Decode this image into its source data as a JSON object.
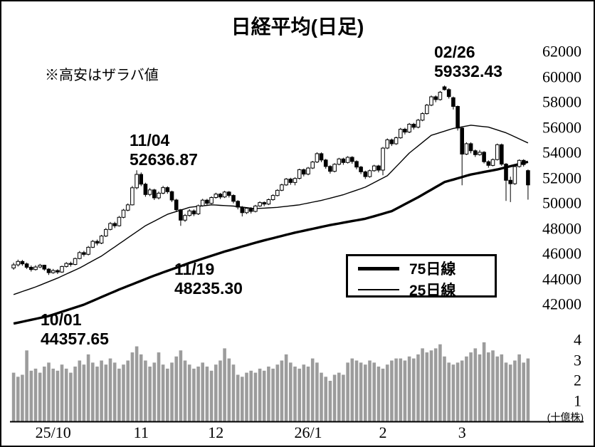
{
  "colors": {
    "background": "#ffffff",
    "border": "#000000",
    "candle_up": "#ffffff",
    "candle_down": "#000000",
    "outline": "#000000",
    "volume_bar": "#9c9c9c",
    "ma75": "#000000",
    "ma25": "#000000"
  },
  "chart_data": {
    "type": "candlestick",
    "title": "日経平均(日足)",
    "note": "※高安はザラバ値",
    "y_ticks": [
      62000,
      60000,
      58000,
      56000,
      54000,
      52000,
      50000,
      48000,
      46000,
      44000,
      42000
    ],
    "y_range": [
      40100,
      63000
    ],
    "volume_ticks": [
      4,
      3,
      2,
      1
    ],
    "volume_unit": "(十億株)",
    "volume_range": [
      0,
      4.3
    ],
    "grid": false,
    "legend": [
      {
        "label": "75日線",
        "style": "thick"
      },
      {
        "label": "25日線",
        "style": "thin"
      }
    ],
    "x_labels": [
      {
        "text": "25/10",
        "day_index": 9
      },
      {
        "text": "11",
        "day_index": 29
      },
      {
        "text": "12",
        "day_index": 46
      },
      {
        "text": "26/1",
        "day_index": 67
      },
      {
        "text": "2",
        "day_index": 84
      },
      {
        "text": "3",
        "day_index": 102
      }
    ],
    "annotations": [
      {
        "date": "02/26",
        "value": "59332.43",
        "day_index": 98,
        "kind": "high"
      },
      {
        "date": "11/04",
        "value": "52636.87",
        "day_index": 28,
        "kind": "high"
      },
      {
        "date": "11/19",
        "value": "48235.30",
        "day_index": 38,
        "kind": "low"
      },
      {
        "date": "10/01",
        "value": "44357.65",
        "day_index": 8,
        "kind": "low"
      }
    ],
    "candles": [
      [
        44900,
        45320,
        44760,
        45150
      ],
      [
        45150,
        45560,
        45020,
        45420
      ],
      [
        45420,
        45540,
        45080,
        45230
      ],
      [
        45230,
        45330,
        44820,
        44960
      ],
      [
        44960,
        45100,
        44620,
        44780
      ],
      [
        44780,
        45120,
        44700,
        44980
      ],
      [
        44980,
        45230,
        44890,
        45120
      ],
      [
        45120,
        45160,
        44680,
        44810
      ],
      [
        44810,
        44890,
        44357.65,
        44530
      ],
      [
        44530,
        44830,
        44440,
        44700
      ],
      [
        44700,
        44800,
        44420,
        44580
      ],
      [
        44580,
        45090,
        44510,
        45020
      ],
      [
        45020,
        45370,
        44940,
        45260
      ],
      [
        45260,
        45400,
        45010,
        45180
      ],
      [
        45180,
        45720,
        45120,
        45650
      ],
      [
        45650,
        46240,
        45590,
        46120
      ],
      [
        46120,
        46260,
        45810,
        45980
      ],
      [
        45980,
        46640,
        45900,
        46540
      ],
      [
        46540,
        47120,
        46480,
        47010
      ],
      [
        47010,
        47150,
        46690,
        46870
      ],
      [
        46870,
        47520,
        46790,
        47430
      ],
      [
        47430,
        48060,
        47350,
        47950
      ],
      [
        47950,
        48540,
        47880,
        48420
      ],
      [
        48420,
        48560,
        48060,
        48240
      ],
      [
        48240,
        49020,
        48180,
        48910
      ],
      [
        48910,
        49580,
        48840,
        49480
      ],
      [
        49480,
        50010,
        49390,
        49900
      ],
      [
        49900,
        51390,
        49850,
        51250
      ],
      [
        51250,
        52636.87,
        51130,
        52310
      ],
      [
        52310,
        52460,
        51380,
        51540
      ],
      [
        51540,
        51650,
        50540,
        50720
      ],
      [
        50720,
        51230,
        50590,
        51080
      ],
      [
        51080,
        51170,
        50280,
        50450
      ],
      [
        50450,
        50950,
        50330,
        50820
      ],
      [
        50820,
        51400,
        50740,
        51260
      ],
      [
        51260,
        51370,
        50780,
        50940
      ],
      [
        50940,
        51020,
        50130,
        50280
      ],
      [
        50280,
        50380,
        49330,
        49510
      ],
      [
        49510,
        49570,
        48235.3,
        48690
      ],
      [
        48690,
        49180,
        48550,
        49060
      ],
      [
        49060,
        49560,
        48970,
        49420
      ],
      [
        49420,
        49540,
        49010,
        49180
      ],
      [
        49180,
        49920,
        49100,
        49830
      ],
      [
        49830,
        50380,
        49760,
        50270
      ],
      [
        50270,
        50370,
        49860,
        50020
      ],
      [
        50020,
        50570,
        49950,
        50480
      ],
      [
        50480,
        50860,
        50390,
        50750
      ],
      [
        50750,
        50840,
        50360,
        50520
      ],
      [
        50520,
        51010,
        50440,
        50910
      ],
      [
        50910,
        50990,
        50480,
        50640
      ],
      [
        50640,
        50730,
        50010,
        50180
      ],
      [
        50180,
        50270,
        49540,
        49720
      ],
      [
        49720,
        49800,
        48980,
        49280
      ],
      [
        49280,
        49720,
        49180,
        49630
      ],
      [
        49630,
        49710,
        49210,
        49380
      ],
      [
        49380,
        49900,
        49300,
        49810
      ],
      [
        49810,
        50180,
        49740,
        50080
      ],
      [
        50080,
        50170,
        49790,
        49960
      ],
      [
        49960,
        50400,
        49880,
        50310
      ],
      [
        50310,
        50730,
        50230,
        50640
      ],
      [
        50640,
        51140,
        50570,
        51050
      ],
      [
        51050,
        51570,
        50980,
        51480
      ],
      [
        51480,
        52030,
        51410,
        51940
      ],
      [
        51940,
        52040,
        51490,
        51670
      ],
      [
        51670,
        52080,
        51440,
        51990
      ],
      [
        51990,
        52760,
        51910,
        52680
      ],
      [
        52680,
        52770,
        52150,
        52330
      ],
      [
        52330,
        52900,
        52240,
        52810
      ],
      [
        52810,
        53380,
        52730,
        53290
      ],
      [
        53290,
        54060,
        53210,
        53950
      ],
      [
        53950,
        54050,
        53280,
        53450
      ],
      [
        53450,
        53540,
        52760,
        52940
      ],
      [
        52940,
        53030,
        52370,
        52550
      ],
      [
        52550,
        53200,
        52470,
        53110
      ],
      [
        53110,
        53620,
        53030,
        53530
      ],
      [
        53530,
        53630,
        53070,
        53250
      ],
      [
        53250,
        53750,
        53170,
        53660
      ],
      [
        53660,
        53750,
        53150,
        53330
      ],
      [
        53330,
        53420,
        52710,
        52890
      ],
      [
        52890,
        52980,
        52330,
        52510
      ],
      [
        52510,
        52600,
        51950,
        52130
      ],
      [
        52130,
        52690,
        52050,
        52600
      ],
      [
        52600,
        53070,
        52520,
        52980
      ],
      [
        52980,
        53070,
        52470,
        52650
      ],
      [
        52650,
        54480,
        52240,
        54390
      ],
      [
        54390,
        55160,
        54310,
        55040
      ],
      [
        55040,
        55150,
        54560,
        54730
      ],
      [
        54730,
        55300,
        54650,
        55210
      ],
      [
        55210,
        55990,
        55130,
        55890
      ],
      [
        55890,
        56000,
        55470,
        55660
      ],
      [
        55660,
        56380,
        55580,
        56280
      ],
      [
        56280,
        56390,
        55860,
        56040
      ],
      [
        56040,
        56700,
        55960,
        56600
      ],
      [
        56600,
        57220,
        56520,
        57120
      ],
      [
        57120,
        57890,
        57050,
        57790
      ],
      [
        57790,
        58550,
        57710,
        58450
      ],
      [
        58450,
        58560,
        58020,
        58230
      ],
      [
        58230,
        58910,
        58150,
        58810
      ],
      [
        59240,
        59332.43,
        58950,
        59020
      ],
      [
        59020,
        59130,
        58310,
        58470
      ],
      [
        58380,
        58470,
        57450,
        57690
      ],
      [
        57690,
        57760,
        55780,
        55980
      ],
      [
        55980,
        56060,
        51450,
        53920
      ],
      [
        53920,
        54850,
        53840,
        54740
      ],
      [
        54740,
        54850,
        53980,
        54180
      ],
      [
        54180,
        54280,
        53690,
        53870
      ],
      [
        53870,
        54240,
        53790,
        54060
      ],
      [
        54060,
        54150,
        53180,
        53310
      ],
      [
        53310,
        53420,
        52840,
        53020
      ],
      [
        53020,
        53560,
        52950,
        53480
      ],
      [
        53480,
        54750,
        53410,
        54660
      ],
      [
        54660,
        54750,
        52980,
        53120
      ],
      [
        53120,
        53210,
        50210,
        51840
      ],
      [
        51840,
        52130,
        50120,
        51570
      ],
      [
        51570,
        53010,
        51480,
        52930
      ],
      [
        52930,
        53500,
        52850,
        53420
      ],
      [
        53420,
        53510,
        52930,
        53090
      ],
      [
        52610,
        52700,
        50310,
        51480
      ]
    ],
    "volume": [
      2.4,
      2.2,
      2.3,
      3.5,
      2.5,
      2.6,
      2.4,
      2.7,
      2.9,
      2.6,
      2.5,
      2.8,
      2.6,
      2.4,
      2.7,
      3.0,
      2.8,
      3.3,
      2.9,
      2.7,
      3.0,
      2.8,
      3.1,
      2.9,
      2.6,
      2.8,
      3.0,
      3.4,
      3.7,
      3.3,
      3.0,
      2.7,
      2.9,
      3.4,
      2.8,
      2.6,
      2.9,
      3.2,
      3.5,
      3.0,
      2.8,
      2.6,
      2.7,
      2.9,
      2.7,
      2.5,
      2.8,
      3.0,
      3.6,
      3.1,
      2.8,
      2.3,
      2.2,
      2.4,
      2.5,
      2.4,
      2.6,
      2.5,
      2.7,
      2.6,
      2.8,
      3.0,
      3.3,
      2.9,
      2.7,
      2.6,
      2.8,
      2.7,
      3.1,
      2.9,
      2.4,
      2.2,
      2.0,
      2.3,
      2.4,
      2.3,
      2.9,
      3.1,
      3.0,
      2.9,
      2.8,
      3.0,
      2.9,
      2.7,
      2.6,
      2.8,
      3.0,
      3.1,
      3.1,
      3.0,
      3.2,
      3.1,
      3.3,
      3.6,
      3.4,
      3.5,
      3.6,
      3.8,
      3.2,
      2.9,
      2.8,
      2.9,
      3.0,
      3.2,
      3.4,
      3.6,
      3.3,
      3.9,
      3.4,
      3.5,
      3.2,
      3.3,
      2.9,
      2.8,
      3.0,
      3.3,
      2.9,
      3.1
    ],
    "ma75_control_points": [
      [
        0,
        40500
      ],
      [
        8,
        41100
      ],
      [
        16,
        42000
      ],
      [
        24,
        43200
      ],
      [
        32,
        44300
      ],
      [
        40,
        45300
      ],
      [
        48,
        46200
      ],
      [
        56,
        47000
      ],
      [
        64,
        47700
      ],
      [
        72,
        48300
      ],
      [
        80,
        48800
      ],
      [
        86,
        49400
      ],
      [
        92,
        50500
      ],
      [
        98,
        51700
      ],
      [
        104,
        52300
      ],
      [
        110,
        52700
      ],
      [
        117,
        53300
      ]
    ],
    "ma25_control_points": [
      [
        0,
        42800
      ],
      [
        5,
        43400
      ],
      [
        10,
        44100
      ],
      [
        15,
        44900
      ],
      [
        20,
        45850
      ],
      [
        25,
        47050
      ],
      [
        30,
        48250
      ],
      [
        35,
        49150
      ],
      [
        40,
        49700
      ],
      [
        45,
        49900
      ],
      [
        50,
        49800
      ],
      [
        55,
        49600
      ],
      [
        60,
        49700
      ],
      [
        65,
        49900
      ],
      [
        70,
        50250
      ],
      [
        75,
        50700
      ],
      [
        80,
        51300
      ],
      [
        85,
        52200
      ],
      [
        90,
        54000
      ],
      [
        95,
        55400
      ],
      [
        100,
        55950
      ],
      [
        104,
        56200
      ],
      [
        108,
        56050
      ],
      [
        112,
        55600
      ],
      [
        117,
        54800
      ]
    ]
  }
}
